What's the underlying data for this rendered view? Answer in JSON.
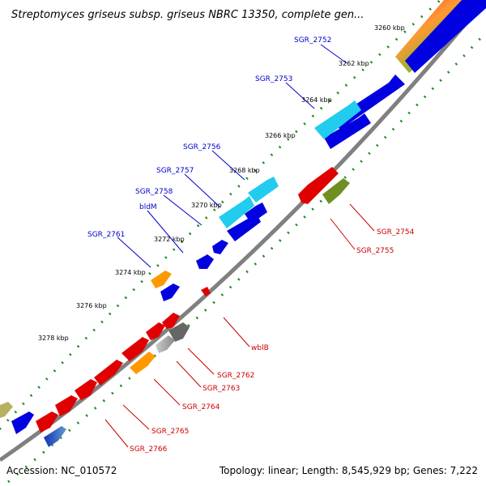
{
  "title": "Streptomyces griseus subsp. griseus NBRC 13350, complete gen...",
  "footer": {
    "accession": "Accession: NC_010572",
    "summary": "Topology: linear; Length: 8,545,929 bp; Genes: 7,222"
  },
  "colors": {
    "backbone": "#808080",
    "ticks": "#1a8a1a",
    "label_forward": "#0000cc",
    "label_reverse": "#cc0000",
    "gene_blue": "#0000e0",
    "gene_cyan": "#22ccee",
    "gene_red": "#e00000",
    "gene_orange": "#ff9900",
    "gene_olive": "#6f8f22",
    "gene_grey": "#666666"
  },
  "scale_labels": [
    "3260 kbp",
    "3262 kbp",
    "3264 kbp",
    "3266 kbp",
    "3268 kbp",
    "3270 kbp",
    "3272 kbp",
    "3274 kbp",
    "3276 kbp",
    "3278 kbp"
  ],
  "gene_labels_forward": [
    "SGR_2752",
    "SGR_2753",
    "SGR_2756",
    "SGR_2757",
    "SGR_2758",
    "bldM",
    "SGR_2761"
  ],
  "gene_labels_reverse": [
    "SGR_2754",
    "SGR_2755",
    "wblB",
    "SGR_2762",
    "SGR_2763",
    "SGR_2764",
    "SGR_2765",
    "SGR_2766"
  ]
}
